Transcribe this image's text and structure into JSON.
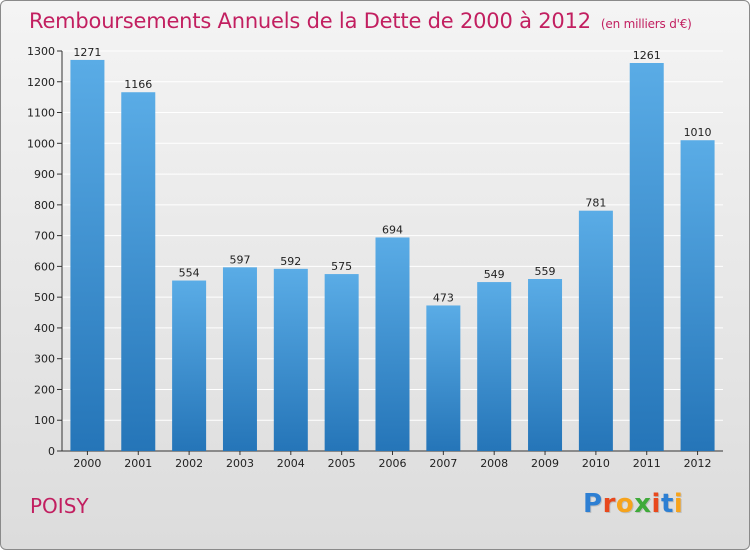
{
  "header": {
    "title": "Remboursements Annuels de la Dette de 2000 à 2012",
    "subtitle": "(en milliers d'€)"
  },
  "footer": {
    "town": "POISY",
    "logo": "Proxiti",
    "logo_colors": [
      "#2d7fd3",
      "#e8481c",
      "#f6a31c",
      "#3faa3a",
      "#e8481c",
      "#2d7fd3",
      "#f6a31c"
    ]
  },
  "chart_data": {
    "type": "bar",
    "title": "Remboursements Annuels de la Dette de 2000 à 2012",
    "subtitle": "(en milliers d'€)",
    "categories": [
      "2000",
      "2001",
      "2002",
      "2003",
      "2004",
      "2005",
      "2006",
      "2007",
      "2008",
      "2009",
      "2010",
      "2011",
      "2012"
    ],
    "values": [
      1271,
      1166,
      554,
      597,
      592,
      575,
      694,
      473,
      549,
      559,
      781,
      1261,
      1010
    ],
    "ylim": [
      0,
      1300
    ],
    "yticks": [
      0,
      100,
      200,
      300,
      400,
      500,
      600,
      700,
      800,
      900,
      1000,
      1100,
      1200,
      1300
    ],
    "grid": true,
    "bar_color_top": "#5aace6",
    "bar_color_bottom": "#2575b8",
    "grid_color": "#ffffff"
  }
}
